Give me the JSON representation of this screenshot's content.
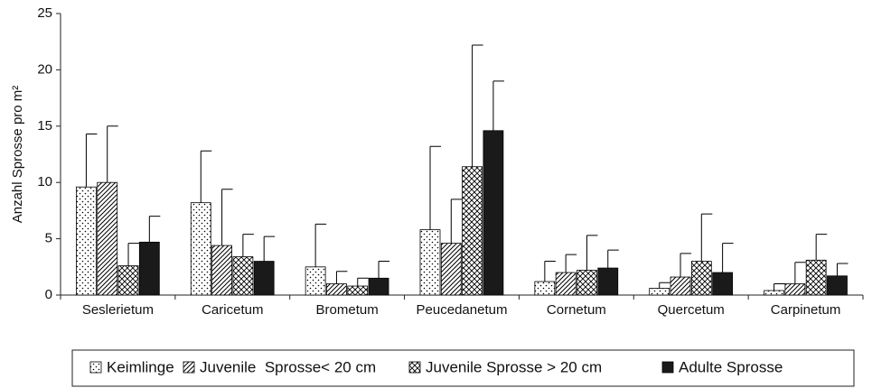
{
  "chart_data": {
    "type": "bar",
    "y_label": "Anzahl Sprosse pro m²",
    "categories": [
      "Seslerietum",
      "Caricetum",
      "Brometum",
      "Peucedanetum",
      "Cornetum",
      "Quercetum",
      "Carpinetum"
    ],
    "series": [
      {
        "name": "Keimlinge",
        "pattern": "dots",
        "color": "#000000",
        "values": [
          9.6,
          8.2,
          2.5,
          5.8,
          1.2,
          0.6,
          0.4
        ],
        "errors": [
          4.7,
          4.6,
          3.8,
          7.4,
          1.8,
          0.5,
          0.6
        ]
      },
      {
        "name": "Juvenile  Sprosse< 20 cm",
        "pattern": "hatch",
        "color": "#000000",
        "values": [
          10.0,
          4.4,
          1.0,
          4.6,
          2.0,
          1.6,
          1.0
        ],
        "errors": [
          5.0,
          5.0,
          1.1,
          3.9,
          1.6,
          2.1,
          1.9
        ]
      },
      {
        "name": "Juvenile Sprosse > 20 cm",
        "pattern": "crosshatch",
        "color": "#000000",
        "values": [
          2.6,
          3.4,
          0.8,
          11.4,
          2.2,
          3.0,
          3.1
        ],
        "errors": [
          2.0,
          2.0,
          0.7,
          10.8,
          3.1,
          4.2,
          2.3
        ]
      },
      {
        "name": "Adulte Sprosse",
        "pattern": "solid",
        "color": "#1a1a1a",
        "values": [
          4.7,
          3.0,
          1.5,
          14.6,
          2.4,
          2.0,
          1.7
        ],
        "errors": [
          2.3,
          2.2,
          1.5,
          4.4,
          1.6,
          2.6,
          1.1
        ]
      }
    ],
    "ylim": [
      0,
      25
    ],
    "yticks": [
      0,
      5,
      10,
      15,
      20,
      25
    ],
    "legend": "bottom"
  }
}
